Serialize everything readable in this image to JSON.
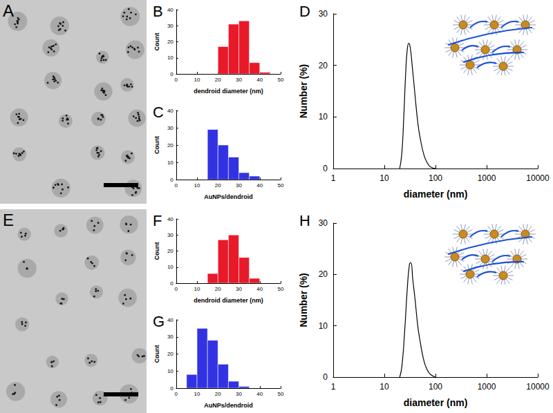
{
  "micrographs": [
    {
      "panel": "A"
    },
    {
      "panel": "E"
    }
  ],
  "chart_data": [
    {
      "type": "histogram",
      "panel": "B",
      "xlabel": "dendroid diameter (nm)",
      "ylabel": "Count",
      "bins": [
        20,
        25,
        30,
        35,
        40,
        45
      ],
      "counts": [
        17,
        31,
        33,
        7,
        1
      ],
      "color": "#e60012",
      "xlim": [
        0,
        50
      ],
      "xticks": [
        0,
        10,
        20,
        30,
        40,
        50
      ],
      "ylim": [
        0,
        40
      ],
      "yticks": [
        0,
        10,
        20,
        30,
        40
      ]
    },
    {
      "type": "histogram",
      "panel": "C",
      "xlabel": "AuNPs/dendroid",
      "ylabel": "Count",
      "bins": [
        15,
        20,
        25,
        30,
        35,
        40
      ],
      "counts": [
        29,
        20,
        13,
        4,
        2
      ],
      "color": "#1c1ce0",
      "xlim": [
        0,
        50
      ],
      "xticks": [
        0,
        10,
        20,
        30,
        40,
        50
      ],
      "ylim": [
        0,
        40
      ],
      "yticks": [
        0,
        10,
        20,
        30,
        40
      ]
    },
    {
      "type": "line",
      "panel": "D",
      "xlabel": "diameter (nm)",
      "ylabel": "Number (%)",
      "x": [
        20,
        22,
        24,
        26,
        28,
        30,
        32,
        35,
        40,
        45,
        50,
        60,
        70,
        80,
        100
      ],
      "values": [
        0,
        3,
        10,
        18,
        23,
        24.3,
        23.5,
        20,
        14,
        9,
        6,
        2.5,
        1,
        0.3,
        0
      ],
      "color": "#000000",
      "log": "x",
      "xlim": [
        1,
        10000
      ],
      "xticks": [
        1,
        10,
        100,
        1000,
        10000
      ],
      "ylim": [
        0,
        30
      ],
      "yticks": [
        0,
        10,
        20,
        30
      ]
    },
    {
      "type": "histogram",
      "panel": "F",
      "xlabel": "dendroid diameter (nm)",
      "ylabel": "Count",
      "bins": [
        15,
        20,
        25,
        30,
        35,
        40
      ],
      "counts": [
        6,
        27,
        30,
        16,
        3
      ],
      "color": "#e60012",
      "xlim": [
        0,
        50
      ],
      "xticks": [
        0,
        10,
        20,
        30,
        40,
        50
      ],
      "ylim": [
        0,
        40
      ],
      "yticks": [
        0,
        10,
        20,
        30,
        40
      ]
    },
    {
      "type": "histogram",
      "panel": "G",
      "xlabel": "AuNPs/dendroid",
      "ylabel": "Count",
      "bins": [
        5,
        10,
        15,
        20,
        25,
        30,
        35
      ],
      "counts": [
        8,
        35,
        28,
        14,
        4,
        1
      ],
      "color": "#1c1ce0",
      "xlim": [
        0,
        50
      ],
      "xticks": [
        0,
        10,
        20,
        30,
        40,
        50
      ],
      "ylim": [
        0,
        40
      ],
      "yticks": [
        0,
        10,
        20,
        30,
        40
      ]
    },
    {
      "type": "line",
      "panel": "H",
      "xlabel": "diameter (nm)",
      "ylabel": "Number (%)",
      "x": [
        20,
        22,
        25,
        28,
        31,
        33,
        36,
        40,
        45,
        50,
        60,
        70,
        80,
        100
      ],
      "values": [
        0,
        2,
        9,
        17,
        22,
        22.3,
        19,
        15,
        10,
        7,
        3,
        1.3,
        0.5,
        0
      ],
      "color": "#000000",
      "log": "x",
      "xlim": [
        1,
        10000
      ],
      "xticks": [
        1,
        10,
        100,
        1000,
        10000
      ],
      "ylim": [
        0,
        30
      ],
      "yticks": [
        0,
        10,
        20,
        30
      ]
    }
  ]
}
